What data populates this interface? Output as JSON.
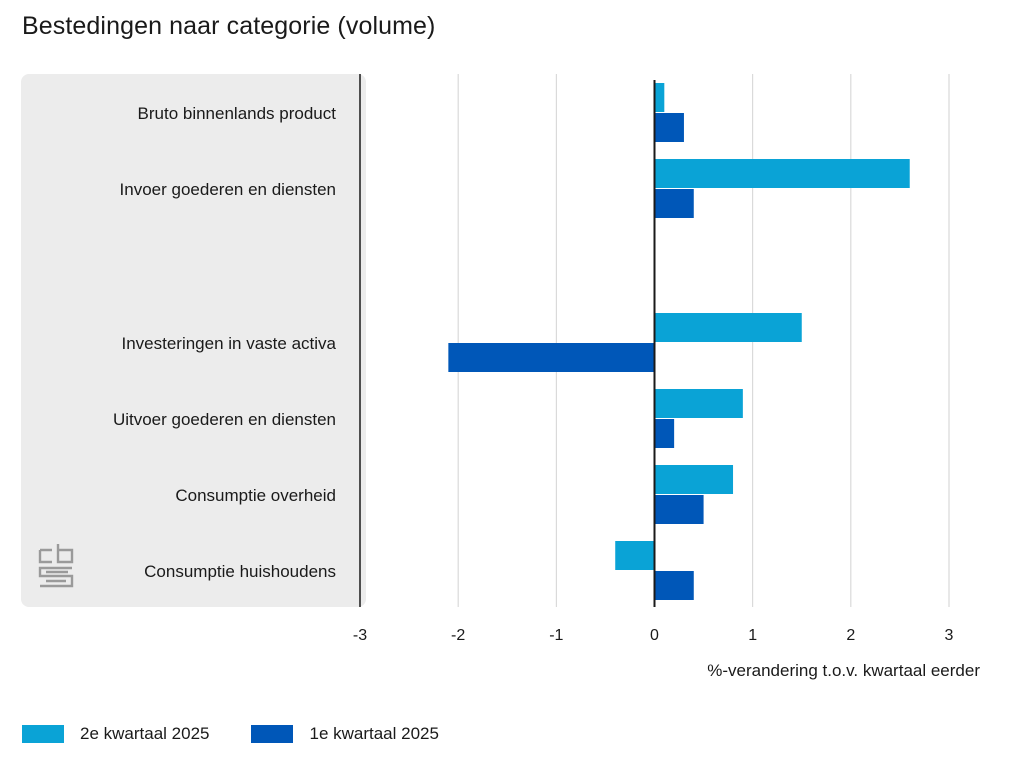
{
  "chart_data": {
    "type": "bar",
    "orientation": "horizontal",
    "title": "Bestedingen naar categorie (volume)",
    "xlabel": "%-verandering t.o.v. kwartaal eerder",
    "ylabel": "",
    "xlim": [
      -3,
      3
    ],
    "xticks": [
      "-3",
      "-2",
      "-1",
      "0",
      "1",
      "2",
      "3"
    ],
    "grid": true,
    "legend_position": "bottom-left",
    "categories": [
      "Bruto binnenlands product",
      "Invoer goederen en diensten",
      "",
      "Investeringen in vaste activa",
      "Uitvoer goederen en diensten",
      "Consumptie overheid",
      "Consumptie huishoudens"
    ],
    "series": [
      {
        "name": "2e kwartaal 2025",
        "color": "#0aa3d6",
        "values": [
          0.1,
          2.6,
          null,
          1.5,
          0.9,
          0.8,
          -0.4
        ]
      },
      {
        "name": "1e kwartaal 2025",
        "color": "#0057b8",
        "values": [
          0.3,
          0.4,
          null,
          -2.1,
          0.2,
          0.5,
          0.4
        ]
      }
    ]
  },
  "colors": {
    "panel": "#ececec",
    "grid": "#d2d2d2",
    "axis": "#1a1a1a",
    "logo": "#9a9a9a"
  }
}
